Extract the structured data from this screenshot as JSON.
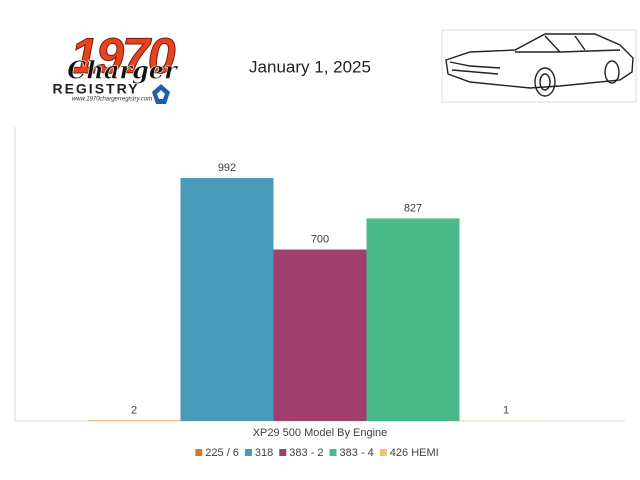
{
  "logo": {
    "year": "1970",
    "model": "Charger",
    "word": "REGISTRY",
    "url": "www.1970chargerregistry.com"
  },
  "chart_data": {
    "type": "bar",
    "title": "January 1, 2025",
    "categories": [
      "XP29 500 Model By Engine"
    ],
    "series": [
      {
        "name": "225 / 6",
        "color": "#d9782a",
        "values": [
          2
        ]
      },
      {
        "name": "318",
        "color": "#4a9aba",
        "values": [
          992
        ]
      },
      {
        "name": "383 - 2",
        "color": "#9e3f6e",
        "values": [
          700
        ]
      },
      {
        "name": "383 - 4",
        "color": "#4cb98a",
        "values": [
          827
        ]
      },
      {
        "name": "426 HEMI",
        "color": "#f0c27a",
        "values": [
          1
        ]
      }
    ],
    "legend": "bottom"
  }
}
